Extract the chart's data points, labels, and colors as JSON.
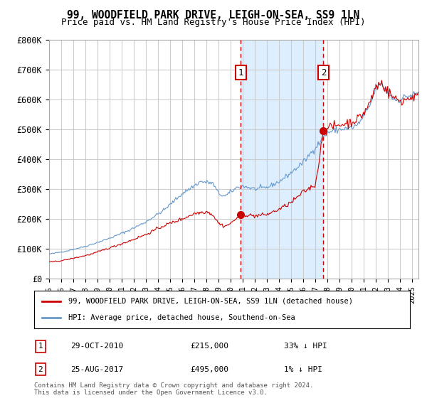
{
  "title": "99, WOODFIELD PARK DRIVE, LEIGH-ON-SEA, SS9 1LN",
  "subtitle": "Price paid vs. HM Land Registry's House Price Index (HPI)",
  "ylim": [
    0,
    800000
  ],
  "ytick_labels": [
    "£0",
    "£100K",
    "£200K",
    "£300K",
    "£400K",
    "£500K",
    "£600K",
    "£700K",
    "£800K"
  ],
  "ytick_values": [
    0,
    100000,
    200000,
    300000,
    400000,
    500000,
    600000,
    700000,
    800000
  ],
  "xlim_start": 1995.0,
  "xlim_end": 2025.5,
  "transaction1_x": 2010.83,
  "transaction1_y": 215000,
  "transaction2_x": 2017.65,
  "transaction2_y": 495000,
  "transaction1_label": "29-OCT-2010",
  "transaction1_price": "£215,000",
  "transaction1_hpi": "33% ↓ HPI",
  "transaction2_label": "25-AUG-2017",
  "transaction2_price": "£495,000",
  "transaction2_hpi": "1% ↓ HPI",
  "legend_line1": "99, WOODFIELD PARK DRIVE, LEIGH-ON-SEA, SS9 1LN (detached house)",
  "legend_line2": "HPI: Average price, detached house, Southend-on-Sea",
  "footnote": "Contains HM Land Registry data © Crown copyright and database right 2024.\nThis data is licensed under the Open Government Licence v3.0.",
  "red_color": "#cc0000",
  "blue_color": "#6699cc",
  "shaded_color": "#ddeeff",
  "background_color": "#ffffff",
  "grid_color": "#cccccc"
}
